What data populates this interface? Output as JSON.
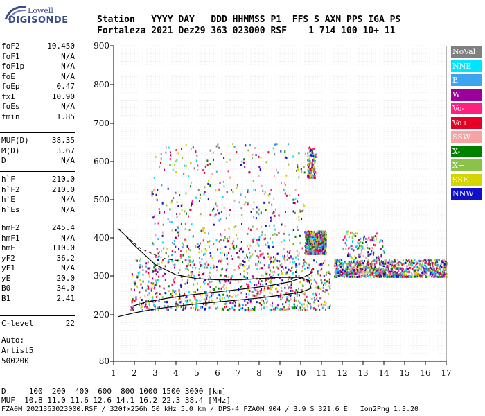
{
  "logo": {
    "brand_top": "Lowell",
    "brand_bottom": "DIGISONDE"
  },
  "header": {
    "line1": "Station   YYYY DAY   DDD HHMMSS P1  FFS S AXN PPS IGA PS",
    "line2": "Fortaleza 2021 Dez29 363 023000 RSF    1 714 100 10+ 11"
  },
  "params_group1": [
    {
      "name": "foF2",
      "value": "10.450"
    },
    {
      "name": "foF1",
      "value": "N/A"
    },
    {
      "name": "foF1p",
      "value": "N/A"
    },
    {
      "name": "foE",
      "value": "N/A"
    },
    {
      "name": "foEp",
      "value": "0.47"
    },
    {
      "name": "fxI",
      "value": "10.90"
    },
    {
      "name": "foEs",
      "value": "N/A"
    },
    {
      "name": "fmin",
      "value": "1.85"
    }
  ],
  "params_group2": [
    {
      "name": "MUF(D)",
      "value": "38.35"
    },
    {
      "name": "M(D)",
      "value": "3.67"
    },
    {
      "name": "D",
      "value": "N/A"
    }
  ],
  "params_group3": [
    {
      "name": "h`F",
      "value": "210.0"
    },
    {
      "name": "h`F2",
      "value": "210.0"
    },
    {
      "name": "h`E",
      "value": "N/A"
    },
    {
      "name": "h`Es",
      "value": "N/A"
    }
  ],
  "params_group4": [
    {
      "name": "hmF2",
      "value": "245.4"
    },
    {
      "name": "hmF1",
      "value": "N/A"
    },
    {
      "name": "hmE",
      "value": "110.0"
    },
    {
      "name": "yF2",
      "value": "36.2"
    },
    {
      "name": "yF1",
      "value": "N/A"
    },
    {
      "name": "yE",
      "value": "20.0"
    },
    {
      "name": "B0",
      "value": "34.0"
    },
    {
      "name": "B1",
      "value": "2.41"
    }
  ],
  "params_group5": [
    {
      "name": "C-level",
      "value": "22"
    }
  ],
  "auto_block": {
    "line1": "Auto:",
    "line2": "Artist5",
    "line3": "500200"
  },
  "legend": [
    {
      "label": "NoVal",
      "color": "#808080"
    },
    {
      "label": "NNE",
      "color": "#00e5ff"
    },
    {
      "label": "E",
      "color": "#3da5f0"
    },
    {
      "label": "W",
      "color": "#9b009b"
    },
    {
      "label": "Vo-",
      "color": "#ff1f7f"
    },
    {
      "label": "Vo+",
      "color": "#e60026"
    },
    {
      "label": "SSW",
      "color": "#f5a3a3"
    },
    {
      "label": "X-",
      "color": "#008000"
    },
    {
      "label": "X+",
      "color": "#8bc34a"
    },
    {
      "label": "SSE",
      "color": "#d4d400"
    },
    {
      "label": "NNW",
      "color": "#1010c8"
    }
  ],
  "bottom": {
    "line1": "D     100  200  400  600  800 1000 1500 3000 [km]",
    "line2": "MUF  10.8 11.0 11.6 12.6 14.1 16.2 22.3 38.4 [MHz]",
    "line3": "FZA0M_2021363023000.RSF / 320fx256h 50 kHz 5.0 km / DPS-4 FZA0M 904 / 3.9 S 321.6 E   Ion2Png 1.3.20"
  },
  "chart_data": {
    "type": "scatter",
    "title": "",
    "xlabel": "",
    "ylabel": "",
    "xlim": [
      1,
      17
    ],
    "ylim": [
      80,
      900
    ],
    "x_ticks": [
      1,
      2,
      3,
      4,
      5,
      6,
      7,
      8,
      9,
      10,
      11,
      12,
      13,
      14,
      15,
      16,
      17
    ],
    "y_ticks": [
      80,
      200,
      300,
      400,
      500,
      600,
      700,
      800,
      900
    ],
    "grid": true,
    "legend_position": "right",
    "series": [
      {
        "name": "trace-profile",
        "points": [
          [
            1.2,
            195
          ],
          [
            2,
            205
          ],
          [
            3,
            215
          ],
          [
            4,
            222
          ],
          [
            5,
            228
          ],
          [
            6,
            233
          ],
          [
            7,
            238
          ],
          [
            8,
            243
          ],
          [
            9,
            250
          ],
          [
            10,
            258
          ],
          [
            10.5,
            268
          ],
          [
            10.4,
            288
          ],
          [
            10,
            296
          ],
          [
            9,
            296
          ],
          [
            8,
            293
          ],
          [
            7,
            290
          ],
          [
            6,
            290
          ],
          [
            5,
            293
          ],
          [
            4,
            303
          ],
          [
            3,
            330
          ],
          [
            2,
            380
          ],
          [
            1.5,
            410
          ],
          [
            1.2,
            425
          ]
        ]
      },
      {
        "name": "trace-echo",
        "points": [
          [
            1.9,
            222
          ],
          [
            2.5,
            232
          ],
          [
            3.5,
            242
          ],
          [
            4.5,
            250
          ],
          [
            5.5,
            256
          ],
          [
            6.5,
            262
          ],
          [
            7.5,
            268
          ],
          [
            8.5,
            275
          ],
          [
            9.5,
            285
          ],
          [
            10.2,
            298
          ],
          [
            10.6,
            310
          ]
        ]
      }
    ],
    "echo_regions": [
      {
        "x": [
          1.8,
          11.4
        ],
        "y": [
          215,
          350
        ],
        "density": "high"
      },
      {
        "x": [
          2.8,
          10.2
        ],
        "y": [
          350,
          650
        ],
        "density": "medium"
      },
      {
        "x": [
          10.2,
          11.2
        ],
        "y": [
          360,
          420
        ],
        "density": "high"
      },
      {
        "x": [
          11.6,
          17
        ],
        "y": [
          300,
          345
        ],
        "density": "high"
      },
      {
        "x": [
          12.0,
          14.0
        ],
        "y": [
          350,
          420
        ],
        "density": "low"
      },
      {
        "x": [
          10.3,
          10.7
        ],
        "y": [
          560,
          640
        ],
        "density": "low"
      }
    ]
  }
}
